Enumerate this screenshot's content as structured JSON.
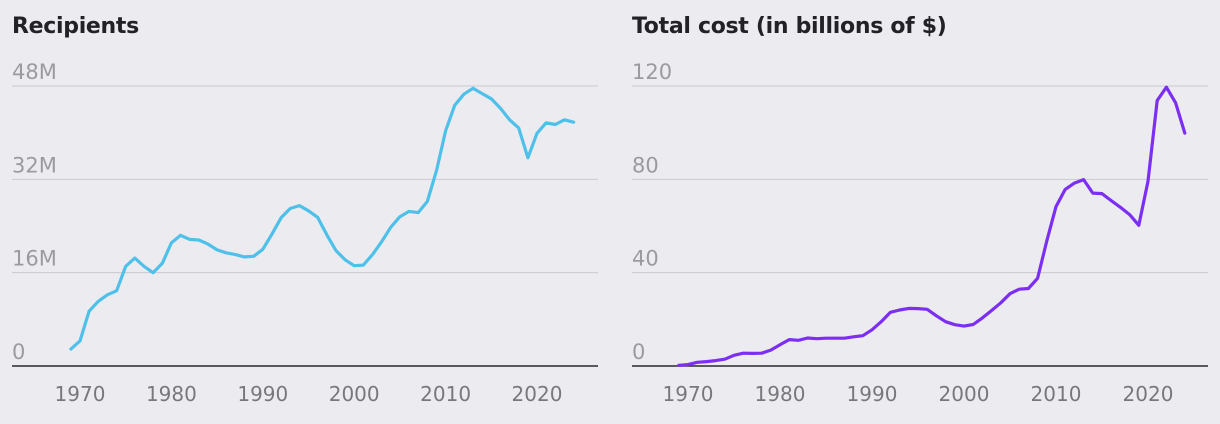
{
  "chart_data": [
    {
      "type": "line",
      "title": "Recipients",
      "xlabel": "",
      "ylabel": "",
      "xlim": [
        1965,
        2025
      ],
      "ylim": [
        0,
        48
      ],
      "xticks": [
        1970,
        1980,
        1990,
        2000,
        2010,
        2020
      ],
      "yticks": [
        0,
        16,
        32,
        48
      ],
      "ytick_labels": [
        "0",
        "16M",
        "32M",
        "48M"
      ],
      "grid": true,
      "series": [
        {
          "name": "Recipients",
          "color": "#4ec0e9",
          "unit": "millions",
          "x": [
            1969,
            1970,
            1971,
            1972,
            1973,
            1974,
            1975,
            1976,
            1977,
            1978,
            1979,
            1980,
            1981,
            1982,
            1983,
            1984,
            1985,
            1986,
            1987,
            1988,
            1989,
            1990,
            1991,
            1992,
            1993,
            1994,
            1995,
            1996,
            1997,
            1998,
            1999,
            2000,
            2001,
            2002,
            2003,
            2004,
            2005,
            2006,
            2007,
            2008,
            2009,
            2010,
            2011,
            2012,
            2013,
            2014,
            2015,
            2016,
            2017,
            2018,
            2019,
            2020,
            2021,
            2022,
            2023,
            2024
          ],
          "values": [
            2.9,
            4.3,
            9.4,
            11.1,
            12.2,
            12.9,
            17.1,
            18.5,
            17.1,
            16.0,
            17.6,
            21.1,
            22.4,
            21.7,
            21.6,
            20.9,
            19.9,
            19.4,
            19.1,
            18.7,
            18.8,
            20.0,
            22.6,
            25.4,
            27.0,
            27.5,
            26.6,
            25.5,
            22.5,
            19.8,
            18.2,
            17.2,
            17.3,
            19.1,
            21.3,
            23.8,
            25.6,
            26.5,
            26.3,
            28.2,
            33.5,
            40.3,
            44.7,
            46.6,
            47.6,
            46.7,
            45.8,
            44.2,
            42.2,
            40.8,
            35.7,
            39.9,
            41.7,
            41.4,
            42.2,
            41.8
          ]
        }
      ]
    },
    {
      "type": "line",
      "title": "Total cost (in billions of $)",
      "xlabel": "",
      "ylabel": "",
      "xlim": [
        1965,
        2025
      ],
      "ylim": [
        0,
        120
      ],
      "xticks": [
        1970,
        1980,
        1990,
        2000,
        2010,
        2020
      ],
      "yticks": [
        0,
        40,
        80,
        120
      ],
      "ytick_labels": [
        "0",
        "40",
        "80",
        "120"
      ],
      "grid": true,
      "series": [
        {
          "name": "Total cost",
          "color": "#7c2ef2",
          "unit": "billions of $",
          "x": [
            1969,
            1970,
            1971,
            1972,
            1973,
            1974,
            1975,
            1976,
            1977,
            1978,
            1979,
            1980,
            1981,
            1982,
            1983,
            1984,
            1985,
            1986,
            1987,
            1988,
            1989,
            1990,
            1991,
            1992,
            1993,
            1994,
            1995,
            1996,
            1997,
            1998,
            1999,
            2000,
            2001,
            2002,
            2003,
            2004,
            2005,
            2006,
            2007,
            2008,
            2009,
            2010,
            2011,
            2012,
            2013,
            2014,
            2015,
            2016,
            2017,
            2018,
            2019,
            2020,
            2021,
            2022,
            2023,
            2024
          ],
          "values": [
            0.3,
            0.6,
            1.6,
            1.9,
            2.3,
            2.9,
            4.6,
            5.5,
            5.4,
            5.5,
            6.8,
            9.1,
            11.3,
            11.0,
            12.0,
            11.7,
            11.9,
            11.9,
            11.9,
            12.5,
            13.0,
            15.5,
            19.0,
            23.0,
            24.0,
            24.7,
            24.6,
            24.3,
            21.5,
            19.0,
            17.7,
            17.1,
            17.8,
            20.6,
            23.8,
            27.1,
            31.0,
            32.9,
            33.2,
            37.6,
            53.6,
            68.3,
            75.7,
            78.4,
            79.9,
            74.1,
            73.9,
            70.9,
            68.0,
            64.9,
            60.3,
            79.2,
            113.8,
            119.5,
            112.8,
            99.8
          ]
        }
      ]
    }
  ]
}
